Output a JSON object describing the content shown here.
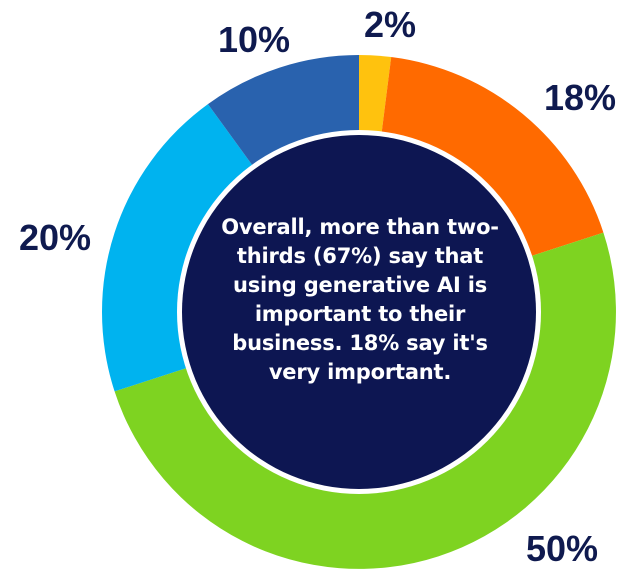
{
  "colors": {
    "center_fill": "#0d1652",
    "label_text": "#0f1a4f"
  },
  "center_note": "Overall, more than two-thirds (67%) say that using generative AI is important to their business. 18% say it's very important.",
  "chart_data": {
    "type": "pie",
    "variant": "donut",
    "title": "",
    "start_angle": "top",
    "direction": "clockwise",
    "slices": [
      {
        "label": "2%",
        "value": 2,
        "color": "#ffc20e"
      },
      {
        "label": "18%",
        "value": 18,
        "color": "#ff6a00"
      },
      {
        "label": "50%",
        "value": 50,
        "color": "#7ed321"
      },
      {
        "label": "20%",
        "value": 20,
        "color": "#00b3ef"
      },
      {
        "label": "10%",
        "value": 10,
        "color": "#2962ae"
      }
    ]
  }
}
